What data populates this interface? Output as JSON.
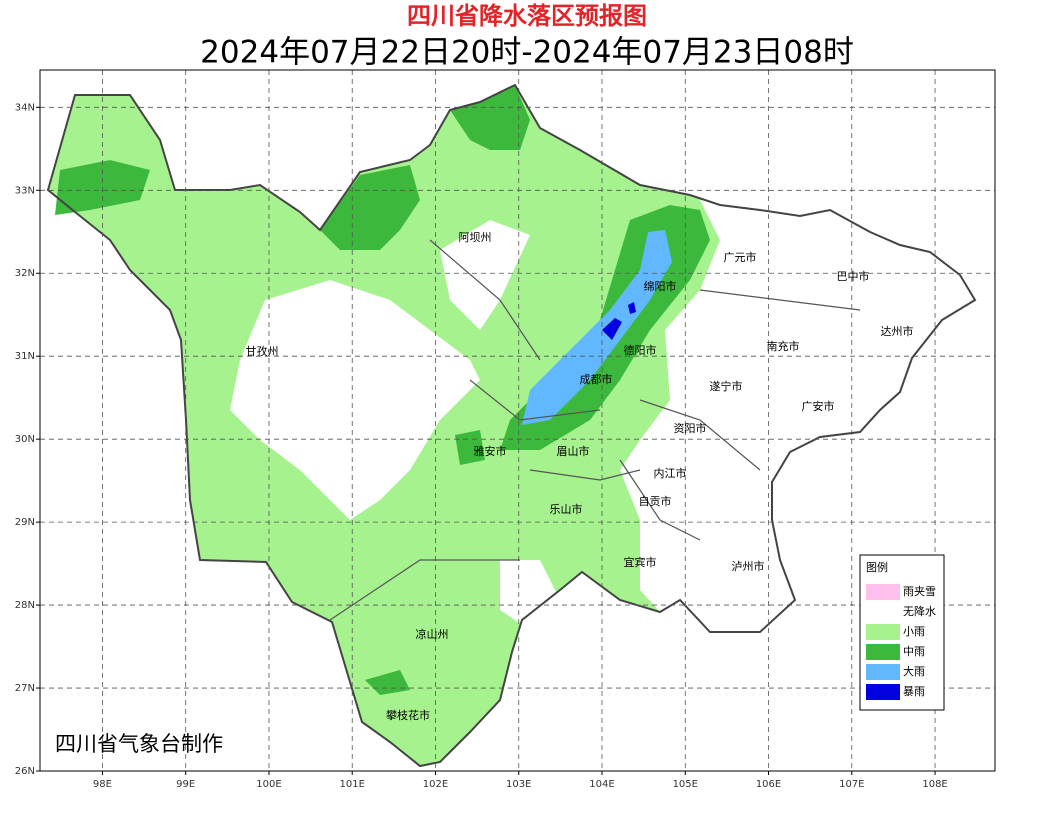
{
  "title": "四川省降水落区预报图",
  "subtitle": "2024年07月22日20时-2024年07月23日08时",
  "map": {
    "xlim": [
      97.25,
      108.72
    ],
    "ylim": [
      26,
      34.45
    ],
    "xticks": [
      {
        "value": 98,
        "label": "98E"
      },
      {
        "value": 99,
        "label": "99E"
      },
      {
        "value": 100,
        "label": "100E"
      },
      {
        "value": 101,
        "label": "101E"
      },
      {
        "value": 102,
        "label": "102E"
      },
      {
        "value": 103,
        "label": "103E"
      },
      {
        "value": 104,
        "label": "104E"
      },
      {
        "value": 105,
        "label": "105E"
      },
      {
        "value": 106,
        "label": "106E"
      },
      {
        "value": 107,
        "label": "107E"
      },
      {
        "value": 108,
        "label": "108E"
      }
    ],
    "yticks": [
      {
        "value": 26,
        "label": "26N"
      },
      {
        "value": 27,
        "label": "27N"
      },
      {
        "value": 28,
        "label": "28N"
      },
      {
        "value": 29,
        "label": "29N"
      },
      {
        "value": 30,
        "label": "30N"
      },
      {
        "value": 31,
        "label": "31N"
      },
      {
        "value": 32,
        "label": "32N"
      },
      {
        "value": 33,
        "label": "33N"
      },
      {
        "value": 34,
        "label": "34N"
      }
    ],
    "grid": true,
    "places": [
      "阿坝州",
      "甘孜州",
      "广元市",
      "巴中市",
      "绵阳市",
      "达州市",
      "德阳市",
      "南充市",
      "成都市",
      "遂宁市",
      "广安市",
      "资阳市",
      "雅安市",
      "眉山市",
      "内江市",
      "自贡市",
      "乐山市",
      "宜宾市",
      "泸州市",
      "凉山州",
      "攀枝花市"
    ]
  },
  "legend": {
    "title": "图例",
    "items": [
      {
        "name": "雨夹雪",
        "color": "#ffc0f0"
      },
      {
        "name": "无降水",
        "color": "#ffffff"
      },
      {
        "name": "小雨",
        "color": "#a6f28f"
      },
      {
        "name": "中雨",
        "color": "#3cb93c"
      },
      {
        "name": "大雨",
        "color": "#61b8ff"
      },
      {
        "name": "暴雨",
        "color": "#0000e1"
      }
    ]
  },
  "credit": "四川省气象台制作"
}
